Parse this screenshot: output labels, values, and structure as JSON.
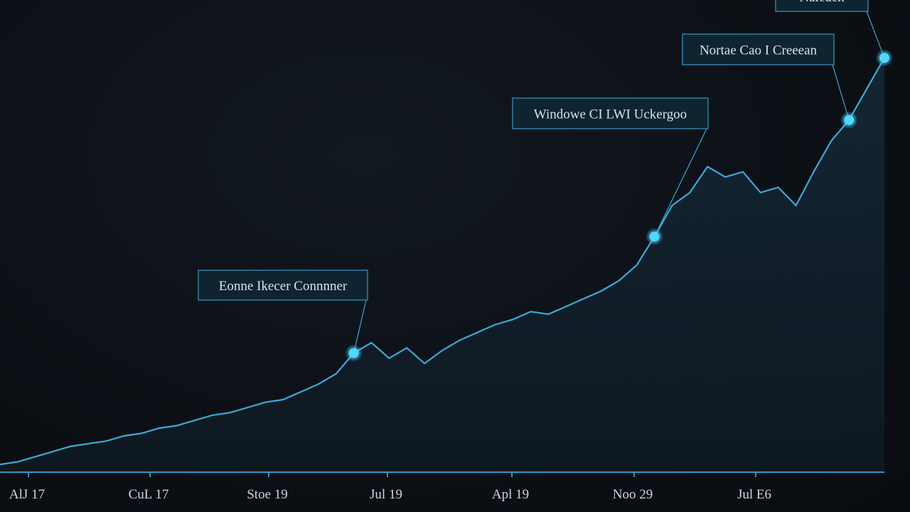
{
  "chart_data": {
    "type": "area",
    "title": "",
    "xlabel": "",
    "ylabel": "",
    "x_tick_labels": [
      "AlJ 17",
      "CuL 17",
      "Stoe 19",
      "Jul 19",
      "Apl 19",
      "Noo 29",
      "Jul E6"
    ],
    "grid": false,
    "legend": "none",
    "colors": {
      "line": "#3fa9d6",
      "point": "#4fd8ff",
      "area_top": "#132432",
      "axis": "#2b97c4"
    },
    "series": [
      {
        "values": [
          3,
          4,
          6,
          8,
          10,
          11,
          12,
          14,
          15,
          17,
          18,
          20,
          22,
          23,
          25,
          27,
          28,
          31,
          34,
          38,
          46,
          50,
          44,
          48,
          42,
          47,
          51,
          54,
          57,
          59,
          62,
          61,
          64,
          67,
          70,
          74,
          80,
          91,
          103,
          108,
          118,
          114,
          116,
          108,
          110,
          103,
          116,
          128,
          136,
          148,
          160
        ]
      }
    ],
    "callouts": [
      {
        "label": "Eonne Ikecer Connnner",
        "point_index": 20
      },
      {
        "label": "Windowe CI LWI Uckergoo",
        "point_index": 37
      },
      {
        "label": "Nortae Cao I Creeean",
        "point_index": 48
      },
      {
        "label": "Naleuen",
        "point_index": 50
      }
    ]
  }
}
